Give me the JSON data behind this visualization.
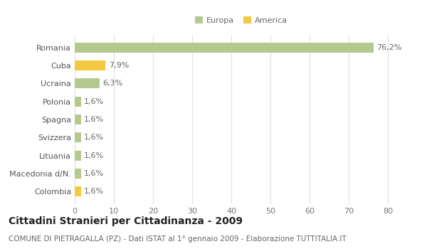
{
  "categories": [
    "Romania",
    "Cuba",
    "Ucraina",
    "Polonia",
    "Spagna",
    "Svizzera",
    "Lituania",
    "Macedonia d/N.",
    "Colombia"
  ],
  "values": [
    76.2,
    7.9,
    6.3,
    1.6,
    1.6,
    1.6,
    1.6,
    1.6,
    1.6
  ],
  "labels": [
    "76,2%",
    "7,9%",
    "6,3%",
    "1,6%",
    "1,6%",
    "1,6%",
    "1,6%",
    "1,6%",
    "1,6%"
  ],
  "colors": [
    "#b5c98e",
    "#f5c842",
    "#b5c98e",
    "#b5c98e",
    "#b5c98e",
    "#b5c98e",
    "#b5c98e",
    "#b5c98e",
    "#f5c842"
  ],
  "legend_labels": [
    "Europa",
    "America"
  ],
  "legend_colors": [
    "#b5c98e",
    "#f5c842"
  ],
  "xlim": [
    0,
    85
  ],
  "xticks": [
    0,
    10,
    20,
    30,
    40,
    50,
    60,
    70,
    80
  ],
  "title": "Cittadini Stranieri per Cittadinanza - 2009",
  "subtitle": "COMUNE DI PIETRAGALLA (PZ) - Dati ISTAT al 1° gennaio 2009 - Elaborazione TUTTITALIA.IT",
  "background_color": "#ffffff",
  "grid_color": "#e0e0e0",
  "bar_height": 0.55,
  "title_fontsize": 10,
  "subtitle_fontsize": 7.5,
  "tick_fontsize": 8,
  "label_fontsize": 8
}
